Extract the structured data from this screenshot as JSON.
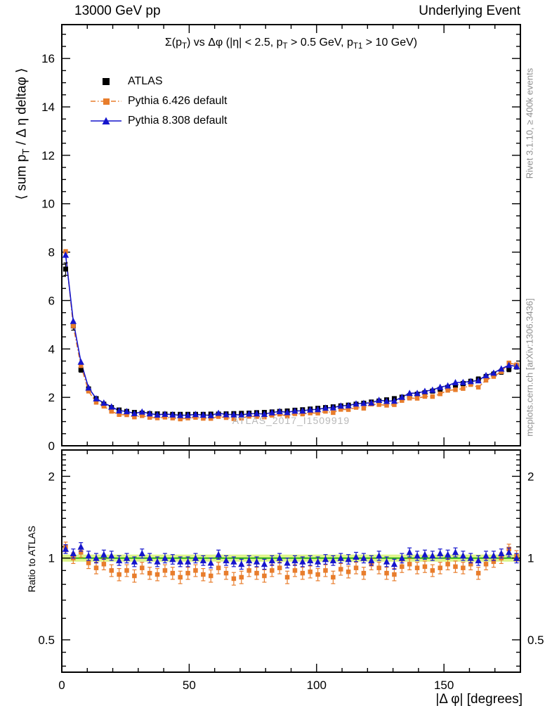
{
  "header": {
    "left": "13000 GeV pp",
    "right": "Underlying Event"
  },
  "side_labels": {
    "rivet": "Rivet 3.1.10, ≥ 400k events",
    "mcplots": "mcplots.cern.ch [arXiv:1306.3436]"
  },
  "watermark": "ATLAS_2017_I1509919",
  "titles": {
    "main": {
      "p0": "Σ(p",
      "s0": "T",
      "p1": ") vs Δφ (|η| < 2.5, p",
      "s1": "T",
      "p2": " > 0.5 GeV, p",
      "s2": "T1",
      "p3": " > 10 GeV)"
    },
    "ylabel": {
      "p0": "⟨ sum p",
      "s0": "T",
      "p1": " / Δ η deltaφ ⟩"
    }
  },
  "chart_data": [
    {
      "type": "line",
      "panel": "main",
      "xlabel": "|Δ φ| [degrees]",
      "xlim": [
        0,
        180
      ],
      "ylim": [
        0,
        17.4
      ],
      "xticks": [
        0,
        50,
        100,
        150
      ],
      "yticks": [
        0,
        2,
        4,
        6,
        8,
        10,
        12,
        14,
        16
      ],
      "x": [
        1.5,
        4.5,
        7.5,
        10.5,
        13.5,
        16.5,
        19.5,
        22.5,
        25.5,
        28.5,
        31.5,
        34.5,
        37.5,
        40.5,
        43.5,
        46.5,
        49.5,
        52.5,
        55.5,
        58.5,
        61.5,
        64.5,
        67.5,
        70.5,
        73.5,
        76.5,
        79.5,
        82.5,
        85.5,
        88.5,
        91.5,
        94.5,
        97.5,
        100.5,
        103.5,
        106.5,
        109.5,
        112.5,
        115.5,
        118.5,
        121.5,
        124.5,
        127.5,
        130.5,
        133.5,
        136.5,
        139.5,
        142.5,
        145.5,
        148.5,
        151.5,
        154.5,
        157.5,
        160.5,
        163.5,
        166.5,
        169.5,
        172.5,
        175.5,
        178.5
      ],
      "series": [
        {
          "name": "ATLAS",
          "marker": "square",
          "color": "#000000",
          "rel_err": 0.035,
          "y": [
            7.3,
            4.95,
            3.15,
            2.35,
            1.95,
            1.72,
            1.58,
            1.48,
            1.42,
            1.38,
            1.35,
            1.33,
            1.32,
            1.31,
            1.3,
            1.3,
            1.3,
            1.3,
            1.3,
            1.31,
            1.31,
            1.32,
            1.33,
            1.34,
            1.35,
            1.37,
            1.38,
            1.4,
            1.42,
            1.44,
            1.47,
            1.49,
            1.52,
            1.55,
            1.58,
            1.61,
            1.65,
            1.68,
            1.72,
            1.76,
            1.81,
            1.85,
            1.9,
            1.95,
            2.01,
            2.07,
            2.13,
            2.19,
            2.26,
            2.33,
            2.41,
            2.49,
            2.57,
            2.66,
            2.75,
            2.85,
            2.95,
            3.06,
            3.17,
            3.28
          ]
        },
        {
          "name": "Pythia 6.426 default",
          "marker": "square",
          "color": "#e87d2c",
          "line": "dashdot",
          "rel_err": 0.02,
          "y_from": "ratio"
        },
        {
          "name": "Pythia 8.308 default",
          "marker": "triangle",
          "color": "#1515cc",
          "line": "solid",
          "rel_err": 0.02,
          "y_from": "ratio"
        }
      ]
    },
    {
      "type": "ratio",
      "ylabel": "Ratio to ATLAS",
      "yscale": "log",
      "ylim": [
        0.38,
        2.5
      ],
      "yticks": [
        0.5,
        1,
        2
      ],
      "band": {
        "center": 1.0,
        "halfwidth": 0.03,
        "color": "#dcf48a",
        "line_color": "#00a000"
      },
      "series": [
        {
          "name": "Pythia 6.426 default",
          "marker": "square",
          "color": "#e87d2c",
          "err": 0.045,
          "ratio": [
            1.1,
            1.0,
            1.05,
            0.96,
            0.92,
            0.95,
            0.9,
            0.87,
            0.9,
            0.86,
            0.92,
            0.88,
            0.87,
            0.9,
            0.88,
            0.85,
            0.88,
            0.9,
            0.87,
            0.86,
            0.92,
            0.88,
            0.84,
            0.85,
            0.9,
            0.88,
            0.86,
            0.9,
            0.92,
            0.85,
            0.9,
            0.88,
            0.89,
            0.87,
            0.9,
            0.85,
            0.91,
            0.89,
            0.92,
            0.88,
            0.95,
            0.92,
            0.88,
            0.87,
            0.93,
            0.95,
            0.92,
            0.93,
            0.9,
            0.92,
            0.95,
            0.93,
            0.92,
            0.95,
            0.88,
            0.95,
            0.97,
            1.0,
            1.08,
            1.02
          ]
        },
        {
          "name": "Pythia 8.308 default",
          "marker": "triangle",
          "color": "#1515cc",
          "err": 0.04,
          "ratio": [
            1.08,
            1.04,
            1.1,
            1.02,
            1.0,
            1.03,
            1.02,
            0.98,
            1.0,
            0.97,
            1.04,
            1.0,
            0.97,
            1.0,
            0.99,
            0.97,
            0.97,
            1.0,
            0.98,
            0.96,
            1.03,
            0.98,
            0.97,
            0.95,
            0.98,
            0.97,
            0.95,
            0.98,
            1.0,
            0.96,
            0.98,
            0.97,
            0.98,
            0.97,
            0.99,
            0.98,
            1.0,
            0.99,
            1.01,
            1.0,
            0.98,
            1.02,
            0.97,
            0.95,
            1.0,
            1.05,
            1.02,
            1.03,
            1.02,
            1.04,
            1.03,
            1.05,
            1.02,
            1.0,
            0.98,
            1.02,
            1.02,
            1.04,
            1.05,
            1.0
          ]
        }
      ]
    }
  ]
}
